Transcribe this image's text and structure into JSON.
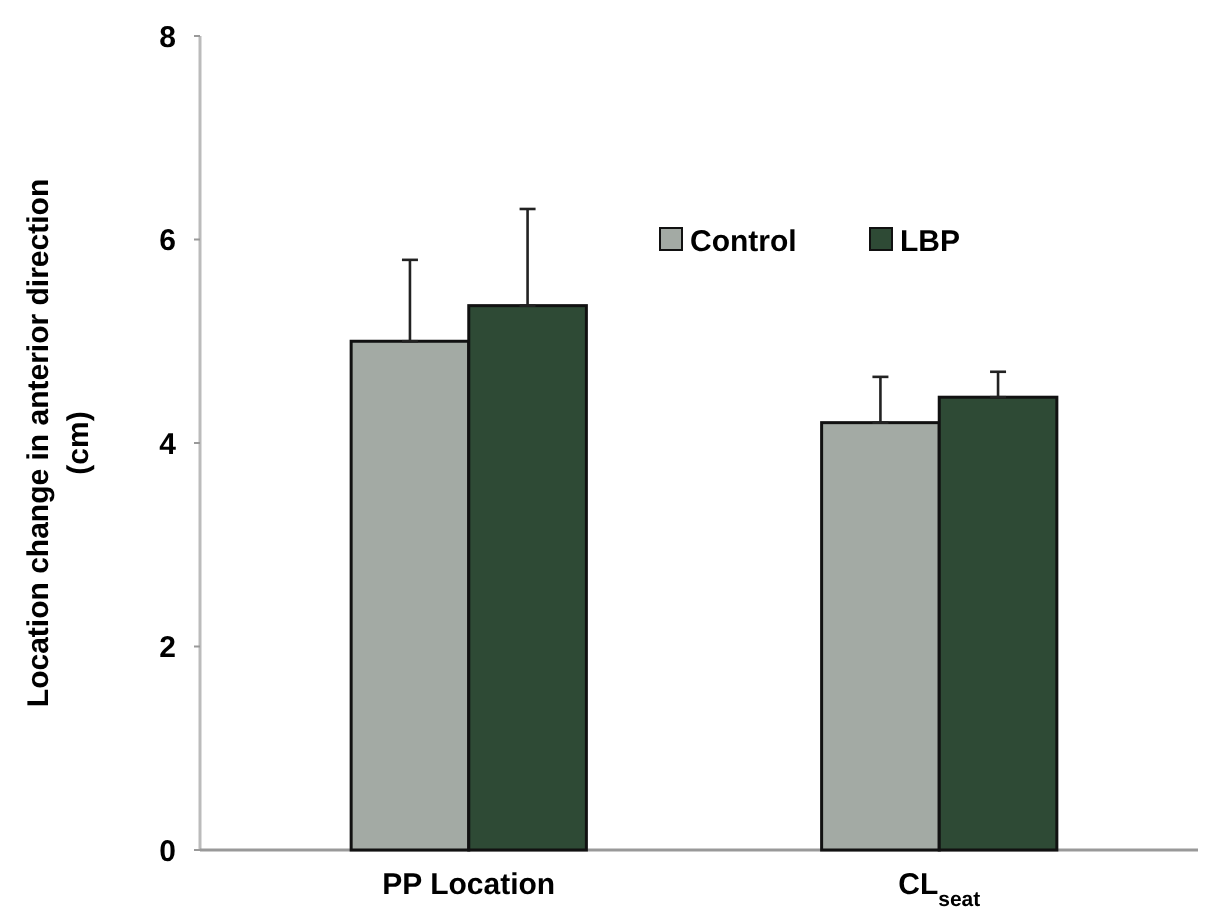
{
  "chart_data": {
    "type": "bar",
    "ylabel": "Location change in anterior direction\n(cm)",
    "categories": [
      "PP Location",
      "CL$_{seat}$"
    ],
    "series": [
      {
        "name": "Control",
        "color": "#a3aaa4",
        "values": [
          5.0,
          4.2
        ],
        "errors": [
          [
            5.0,
            5.8
          ],
          [
            4.2,
            4.65
          ]
        ]
      },
      {
        "name": "LBP",
        "color": "#2e4a35",
        "values": [
          5.35,
          4.45
        ],
        "errors": [
          [
            5.35,
            6.3
          ],
          [
            4.45,
            4.7
          ]
        ]
      }
    ],
    "ylim": [
      0,
      8
    ],
    "yticks": [
      0,
      2,
      4,
      6,
      8
    ],
    "grid": false,
    "legend": "top right"
  }
}
